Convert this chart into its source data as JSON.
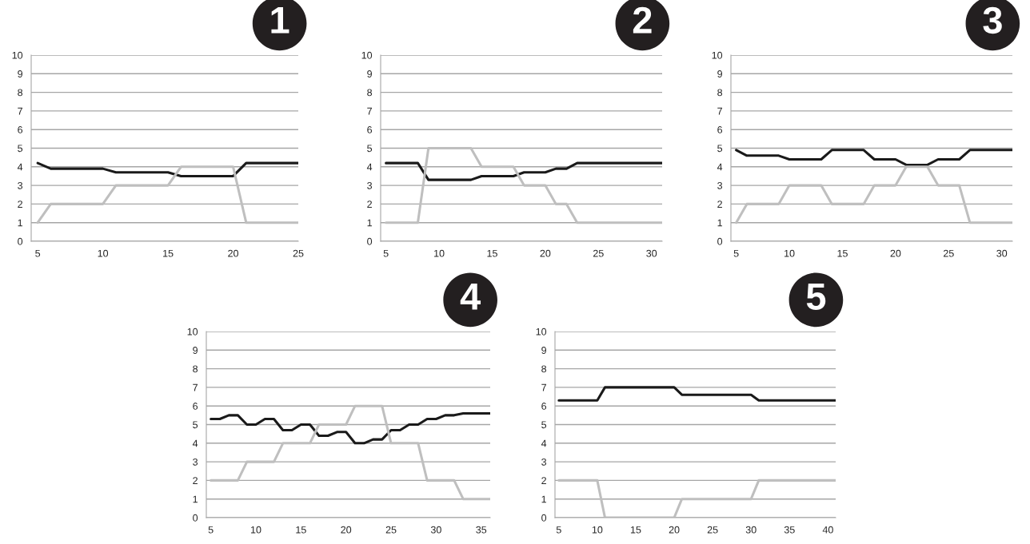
{
  "chart_data": [
    {
      "type": "line",
      "title": "1",
      "x": [
        5,
        6,
        7,
        8,
        9,
        10,
        11,
        12,
        13,
        14,
        15,
        16,
        17,
        18,
        19,
        20,
        21,
        22,
        23,
        24,
        25
      ],
      "xlim": [
        4.5,
        25
      ],
      "xticks": [
        5,
        10,
        15,
        20,
        25
      ],
      "ylim": [
        0,
        10
      ],
      "yticks": [
        0,
        1,
        2,
        3,
        4,
        5,
        6,
        7,
        8,
        9,
        10
      ],
      "grid": "y",
      "series": [
        {
          "color": "#1a1a1a",
          "values": [
            4.2,
            3.9,
            3.9,
            3.9,
            3.9,
            3.9,
            3.7,
            3.7,
            3.7,
            3.7,
            3.7,
            3.5,
            3.5,
            3.5,
            3.5,
            3.5,
            4.2,
            4.2,
            4.2,
            4.2,
            4.2
          ]
        },
        {
          "color": "#bfbfbf",
          "values": [
            1,
            2,
            2,
            2,
            2,
            2,
            3,
            3,
            3,
            3,
            3,
            4,
            4,
            4,
            4,
            4,
            1,
            1,
            1,
            1,
            1
          ]
        }
      ]
    },
    {
      "type": "line",
      "title": "2",
      "x": [
        5,
        6,
        7,
        8,
        9,
        10,
        11,
        12,
        13,
        14,
        15,
        16,
        17,
        18,
        19,
        20,
        21,
        22,
        23,
        24,
        25,
        26,
        27,
        28,
        29,
        30,
        31
      ],
      "xlim": [
        4.5,
        31
      ],
      "xticks": [
        5,
        10,
        15,
        20,
        25,
        30
      ],
      "ylim": [
        0,
        10
      ],
      "yticks": [
        0,
        1,
        2,
        3,
        4,
        5,
        6,
        7,
        8,
        9,
        10
      ],
      "grid": "y",
      "series": [
        {
          "color": "#1a1a1a",
          "values": [
            4.2,
            4.2,
            4.2,
            4.2,
            3.3,
            3.3,
            3.3,
            3.3,
            3.3,
            3.5,
            3.5,
            3.5,
            3.5,
            3.7,
            3.7,
            3.7,
            3.9,
            3.9,
            4.2,
            4.2,
            4.2,
            4.2,
            4.2,
            4.2,
            4.2,
            4.2,
            4.2
          ]
        },
        {
          "color": "#bfbfbf",
          "values": [
            1,
            1,
            1,
            1,
            5,
            5,
            5,
            5,
            5,
            4,
            4,
            4,
            4,
            3,
            3,
            3,
            2,
            2,
            1,
            1,
            1,
            1,
            1,
            1,
            1,
            1,
            1
          ]
        }
      ]
    },
    {
      "type": "line",
      "title": "3",
      "x": [
        5,
        6,
        7,
        8,
        9,
        10,
        11,
        12,
        13,
        14,
        15,
        16,
        17,
        18,
        19,
        20,
        21,
        22,
        23,
        24,
        25,
        26,
        27,
        28,
        29,
        30,
        31
      ],
      "xlim": [
        4.5,
        31
      ],
      "xticks": [
        5,
        10,
        15,
        20,
        25,
        30
      ],
      "ylim": [
        0,
        10
      ],
      "yticks": [
        0,
        1,
        2,
        3,
        4,
        5,
        6,
        7,
        8,
        9,
        10
      ],
      "grid": "y",
      "series": [
        {
          "color": "#1a1a1a",
          "values": [
            4.9,
            4.6,
            4.6,
            4.6,
            4.6,
            4.4,
            4.4,
            4.4,
            4.4,
            4.9,
            4.9,
            4.9,
            4.9,
            4.4,
            4.4,
            4.4,
            4.1,
            4.1,
            4.1,
            4.4,
            4.4,
            4.4,
            4.9,
            4.9,
            4.9,
            4.9,
            4.9
          ]
        },
        {
          "color": "#bfbfbf",
          "values": [
            1,
            2,
            2,
            2,
            2,
            3,
            3,
            3,
            3,
            2,
            2,
            2,
            2,
            3,
            3,
            3,
            4,
            4,
            4,
            3,
            3,
            3,
            1,
            1,
            1,
            1,
            1
          ]
        }
      ]
    },
    {
      "type": "line",
      "title": "4",
      "x": [
        5,
        6,
        7,
        8,
        9,
        10,
        11,
        12,
        13,
        14,
        15,
        16,
        17,
        18,
        19,
        20,
        21,
        22,
        23,
        24,
        25,
        26,
        27,
        28,
        29,
        30,
        31,
        32,
        33,
        34,
        35,
        36
      ],
      "xlim": [
        4.5,
        36
      ],
      "xticks": [
        5,
        10,
        15,
        20,
        25,
        30,
        35
      ],
      "ylim": [
        0,
        10
      ],
      "yticks": [
        0,
        1,
        2,
        3,
        4,
        5,
        6,
        7,
        8,
        9,
        10
      ],
      "grid": "y",
      "series": [
        {
          "color": "#1a1a1a",
          "values": [
            5.3,
            5.3,
            5.5,
            5.5,
            5.0,
            5.0,
            5.3,
            5.3,
            4.7,
            4.7,
            5.0,
            5.0,
            4.4,
            4.4,
            4.6,
            4.6,
            4.0,
            4.0,
            4.2,
            4.2,
            4.7,
            4.7,
            5.0,
            5.0,
            5.3,
            5.3,
            5.5,
            5.5,
            5.6,
            5.6,
            5.6,
            5.6
          ]
        },
        {
          "color": "#bfbfbf",
          "values": [
            2,
            2,
            2,
            2,
            3,
            3,
            3,
            3,
            4,
            4,
            4,
            4,
            5,
            5,
            5,
            5,
            6,
            6,
            6,
            6,
            4,
            4,
            4,
            4,
            2,
            2,
            2,
            2,
            1,
            1,
            1,
            1
          ]
        }
      ]
    },
    {
      "type": "line",
      "title": "5",
      "x": [
        5,
        6,
        7,
        8,
        9,
        10,
        11,
        12,
        13,
        14,
        15,
        16,
        17,
        18,
        19,
        20,
        21,
        22,
        23,
        24,
        25,
        26,
        27,
        28,
        29,
        30,
        31,
        32,
        33,
        34,
        35,
        36,
        37,
        38,
        39,
        40,
        41
      ],
      "xlim": [
        4.5,
        41
      ],
      "xticks": [
        5,
        10,
        15,
        20,
        25,
        30,
        35,
        40
      ],
      "ylim": [
        0,
        10
      ],
      "yticks": [
        0,
        1,
        2,
        3,
        4,
        5,
        6,
        7,
        8,
        9,
        10
      ],
      "grid": "y",
      "series": [
        {
          "color": "#1a1a1a",
          "values": [
            6.3,
            6.3,
            6.3,
            6.3,
            6.3,
            6.3,
            7.0,
            7.0,
            7.0,
            7.0,
            7.0,
            7.0,
            7.0,
            7.0,
            7.0,
            7.0,
            6.6,
            6.6,
            6.6,
            6.6,
            6.6,
            6.6,
            6.6,
            6.6,
            6.6,
            6.6,
            6.3,
            6.3,
            6.3,
            6.3,
            6.3,
            6.3,
            6.3,
            6.3,
            6.3,
            6.3,
            6.3
          ]
        },
        {
          "color": "#bfbfbf",
          "values": [
            2,
            2,
            2,
            2,
            2,
            2,
            0,
            0,
            0,
            0,
            0,
            0,
            0,
            0,
            0,
            0,
            1,
            1,
            1,
            1,
            1,
            1,
            1,
            1,
            1,
            1,
            2,
            2,
            2,
            2,
            2,
            2,
            2,
            2,
            2,
            2,
            2
          ]
        }
      ]
    }
  ]
}
